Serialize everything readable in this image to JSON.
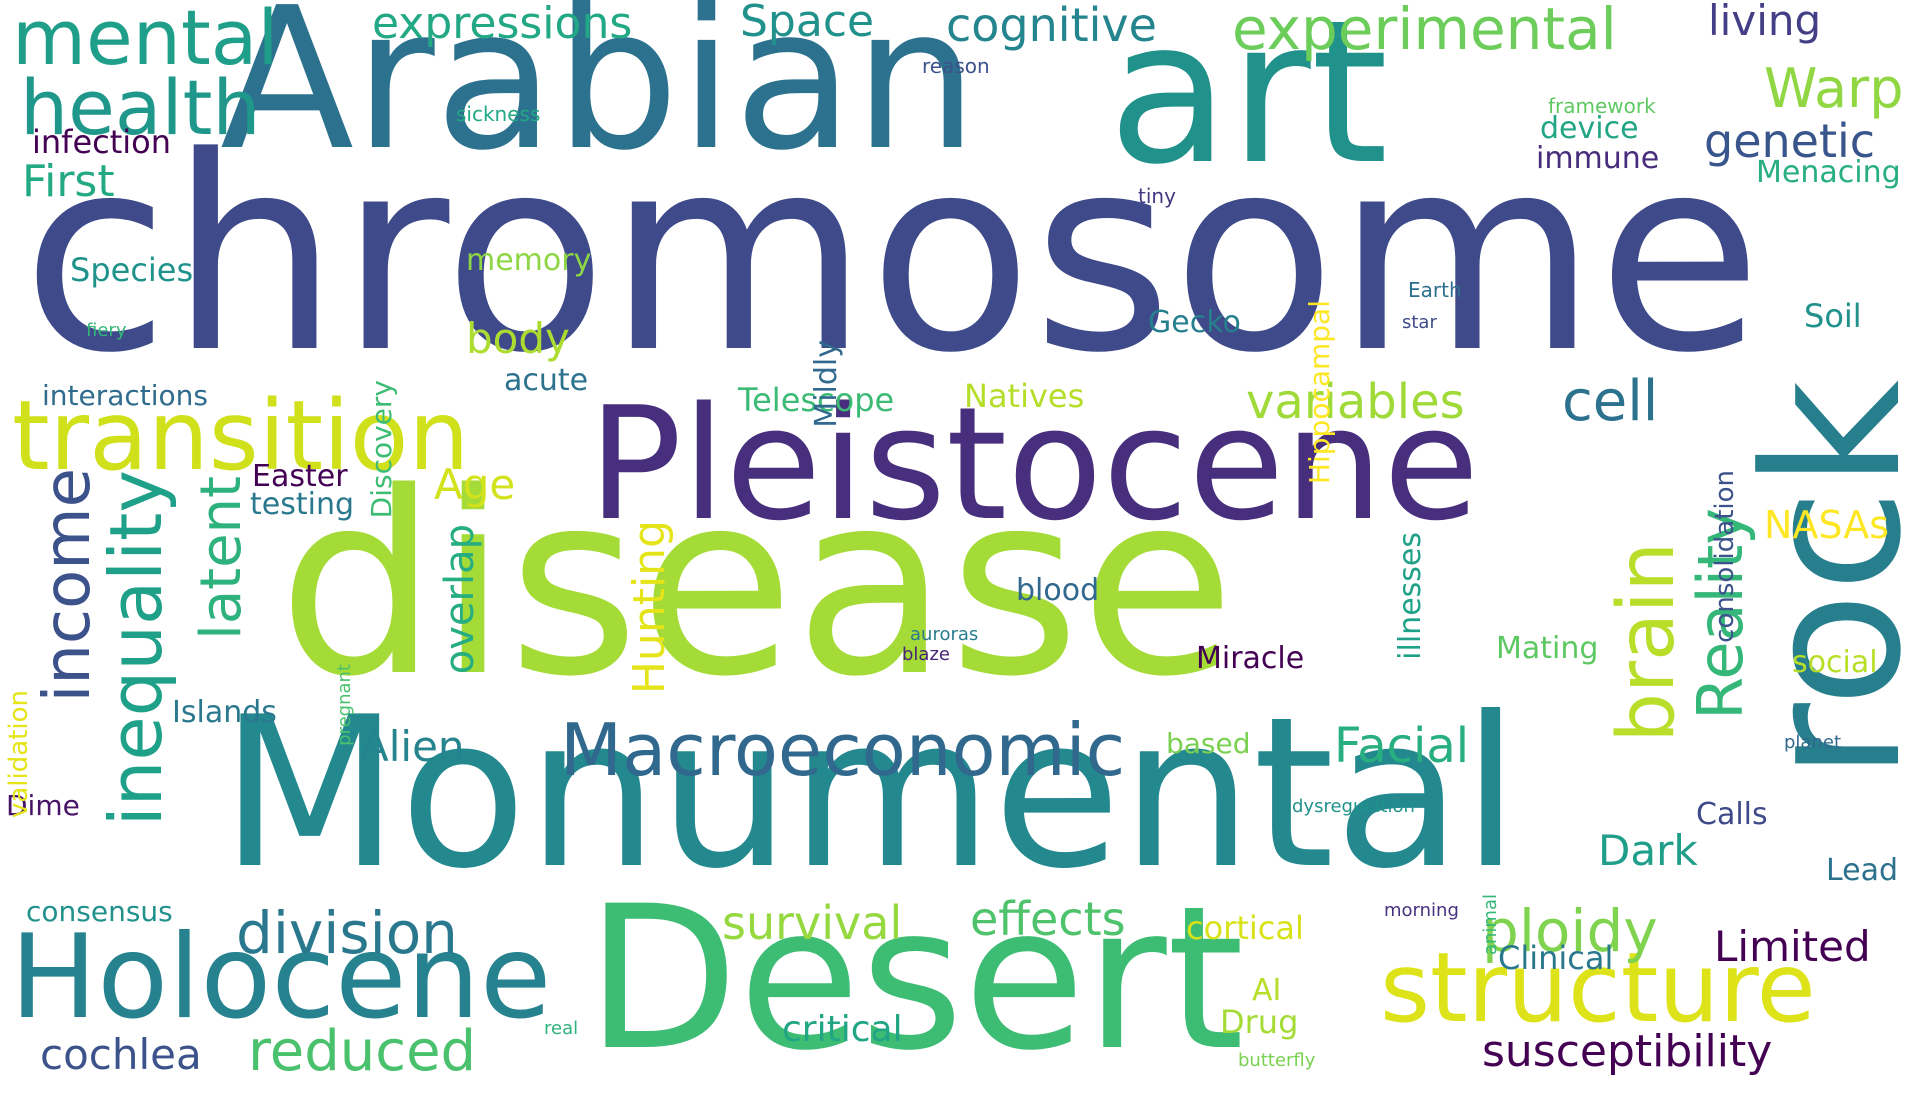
{
  "palette": [
    "#440154",
    "#472d7b",
    "#3b518b",
    "#2c728e",
    "#21918c",
    "#28ae80",
    "#5ec962",
    "#addc30",
    "#d8e219",
    "#fde725"
  ],
  "words": [
    {
      "text": "chromosome",
      "color": "#3e4a89",
      "vertical": false
    },
    {
      "text": "Arabian",
      "color": "#2c728e",
      "vertical": false
    },
    {
      "text": "art",
      "color": "#21918c",
      "vertical": false
    },
    {
      "text": "disease",
      "color": "#a5db36",
      "vertical": false
    },
    {
      "text": "Monumental",
      "color": "#23898e",
      "vertical": false
    },
    {
      "text": "Desert",
      "color": "#3dbc74",
      "vertical": false
    },
    {
      "text": "Pleistocene",
      "color": "#472f7d",
      "vertical": false
    },
    {
      "text": "rock",
      "color": "#277f8e",
      "vertical": true
    },
    {
      "text": "transition",
      "color": "#d0e11c",
      "vertical": false
    },
    {
      "text": "Holocene",
      "color": "#26828e",
      "vertical": false
    },
    {
      "text": "structure",
      "color": "#dde318",
      "vertical": false
    },
    {
      "text": "Macroeconomic",
      "color": "#31688e",
      "vertical": false
    },
    {
      "text": "mental",
      "color": "#1f9e89",
      "vertical": false
    },
    {
      "text": "health",
      "color": "#1f988b",
      "vertical": false
    },
    {
      "text": "inequality",
      "color": "#1fa088",
      "vertical": true
    },
    {
      "text": "income",
      "color": "#3b528b",
      "vertical": true
    },
    {
      "text": "brain",
      "color": "#b8de29",
      "vertical": true
    },
    {
      "text": "Reality",
      "color": "#35b779",
      "vertical": true
    },
    {
      "text": "experimental",
      "color": "#6ccd5a",
      "vertical": false
    },
    {
      "text": "division",
      "color": "#2a788e",
      "vertical": false
    },
    {
      "text": "reduced",
      "color": "#4ac16d",
      "vertical": false
    },
    {
      "text": "ploidy",
      "color": "#7fd34e",
      "vertical": false
    },
    {
      "text": "survival",
      "color": "#95d840",
      "vertical": false
    },
    {
      "text": "effects",
      "color": "#4ec36b",
      "vertical": false
    },
    {
      "text": "latent",
      "color": "#2db27d",
      "vertical": true
    },
    {
      "text": "variables",
      "color": "#a0da39",
      "vertical": false
    },
    {
      "text": "cell",
      "color": "#2c728e",
      "vertical": false
    },
    {
      "text": "cochlea",
      "color": "#3b528b",
      "vertical": false
    },
    {
      "text": "susceptibility",
      "color": "#440154",
      "vertical": false
    },
    {
      "text": "Warp",
      "color": "#90d743",
      "vertical": false
    },
    {
      "text": "genetic",
      "color": "#39568c",
      "vertical": false
    },
    {
      "text": "expressions",
      "color": "#22a884",
      "vertical": false
    },
    {
      "text": "cognitive",
      "color": "#25858e",
      "vertical": false
    },
    {
      "text": "living",
      "color": "#433e85",
      "vertical": false
    },
    {
      "text": "Space",
      "color": "#21918c",
      "vertical": false
    },
    {
      "text": "Hunting",
      "color": "#e5e419",
      "vertical": true
    },
    {
      "text": "overlap",
      "color": "#26ad81",
      "vertical": true
    },
    {
      "text": "Facial",
      "color": "#29af7f",
      "vertical": false
    },
    {
      "text": "Alien",
      "color": "#25848e",
      "vertical": false
    },
    {
      "text": "Limited",
      "color": "#440154",
      "vertical": false
    },
    {
      "text": "Dark",
      "color": "#1f9e89",
      "vertical": false
    },
    {
      "text": "body",
      "color": "#addc30",
      "vertical": false
    },
    {
      "text": "First",
      "color": "#23a983",
      "vertical": false
    },
    {
      "text": "Age",
      "color": "#d2e21b",
      "vertical": false
    },
    {
      "text": "critical",
      "color": "#21a585",
      "vertical": false
    },
    {
      "text": "NASAs",
      "color": "#fde725",
      "vertical": false
    },
    {
      "text": "Clinical",
      "color": "#2a788e",
      "vertical": false
    },
    {
      "text": "Drug",
      "color": "#a5db36",
      "vertical": false
    },
    {
      "text": "cortical",
      "color": "#d8e219",
      "vertical": false
    },
    {
      "text": "illnesses",
      "color": "#1fa188",
      "vertical": true
    },
    {
      "text": "Telescope",
      "color": "#3bbb75",
      "vertical": false
    },
    {
      "text": "Natives",
      "color": "#b5de2b",
      "vertical": false
    },
    {
      "text": "memory",
      "color": "#8ed645",
      "vertical": false
    },
    {
      "text": "Species",
      "color": "#20928c",
      "vertical": false
    },
    {
      "text": "Gecko",
      "color": "#277f8e",
      "vertical": false
    },
    {
      "text": "Soil",
      "color": "#21918c",
      "vertical": false
    },
    {
      "text": "infection",
      "color": "#440154",
      "vertical": false
    },
    {
      "text": "immune",
      "color": "#472d7b",
      "vertical": false
    },
    {
      "text": "device",
      "color": "#21a685",
      "vertical": false
    },
    {
      "text": "Menacing",
      "color": "#29af7f",
      "vertical": false
    },
    {
      "text": "Easter",
      "color": "#440154",
      "vertical": false
    },
    {
      "text": "testing",
      "color": "#2a788e",
      "vertical": false
    },
    {
      "text": "acute",
      "color": "#2c728e",
      "vertical": false
    },
    {
      "text": "interactions",
      "color": "#2f6c8e",
      "vertical": false
    },
    {
      "text": "Islands",
      "color": "#2a788e",
      "vertical": false
    },
    {
      "text": "Dime",
      "color": "#481467",
      "vertical": false
    },
    {
      "text": "consensus",
      "color": "#21918c",
      "vertical": false
    },
    {
      "text": "Miracle",
      "color": "#440154",
      "vertical": false
    },
    {
      "text": "Mating",
      "color": "#5ec962",
      "vertical": false
    },
    {
      "text": "social",
      "color": "#b8de29",
      "vertical": false
    },
    {
      "text": "blood",
      "color": "#31688e",
      "vertical": false
    },
    {
      "text": "based",
      "color": "#7ad151",
      "vertical": false
    },
    {
      "text": "Calls",
      "color": "#3e4a89",
      "vertical": false
    },
    {
      "text": "Lead",
      "color": "#2c728e",
      "vertical": false
    },
    {
      "text": "AI",
      "color": "#b8de29",
      "vertical": false
    },
    {
      "text": "Hippocampal",
      "color": "#fde725",
      "vertical": true
    },
    {
      "text": "Discovery",
      "color": "#3dbc74",
      "vertical": true
    },
    {
      "text": "Mildly",
      "color": "#31688e",
      "vertical": true
    },
    {
      "text": "consolidation",
      "color": "#3b528b",
      "vertical": true
    },
    {
      "text": "validation",
      "color": "#e5e419",
      "vertical": true
    },
    {
      "text": "pregnant",
      "color": "#4ac16d",
      "vertical": true
    },
    {
      "text": "animal",
      "color": "#35b779",
      "vertical": true
    },
    {
      "text": "sickness",
      "color": "#22a884",
      "vertical": false
    },
    {
      "text": "reason",
      "color": "#3b528b",
      "vertical": false
    },
    {
      "text": "framework",
      "color": "#5ec962",
      "vertical": false
    },
    {
      "text": "tiny",
      "color": "#453781",
      "vertical": false
    },
    {
      "text": "Earth",
      "color": "#2d708e",
      "vertical": false
    },
    {
      "text": "star",
      "color": "#3e4a89",
      "vertical": false
    },
    {
      "text": "fiery",
      "color": "#35b779",
      "vertical": false
    },
    {
      "text": "auroras",
      "color": "#287c8e",
      "vertical": false
    },
    {
      "text": "blaze",
      "color": "#482475",
      "vertical": false
    },
    {
      "text": "planet",
      "color": "#31688e",
      "vertical": false
    },
    {
      "text": "dysregulation",
      "color": "#21918c",
      "vertical": false
    },
    {
      "text": "morning",
      "color": "#46327e",
      "vertical": false
    },
    {
      "text": "real",
      "color": "#2eb37c",
      "vertical": false
    },
    {
      "text": "butterfly",
      "color": "#7ad151",
      "vertical": false
    }
  ]
}
